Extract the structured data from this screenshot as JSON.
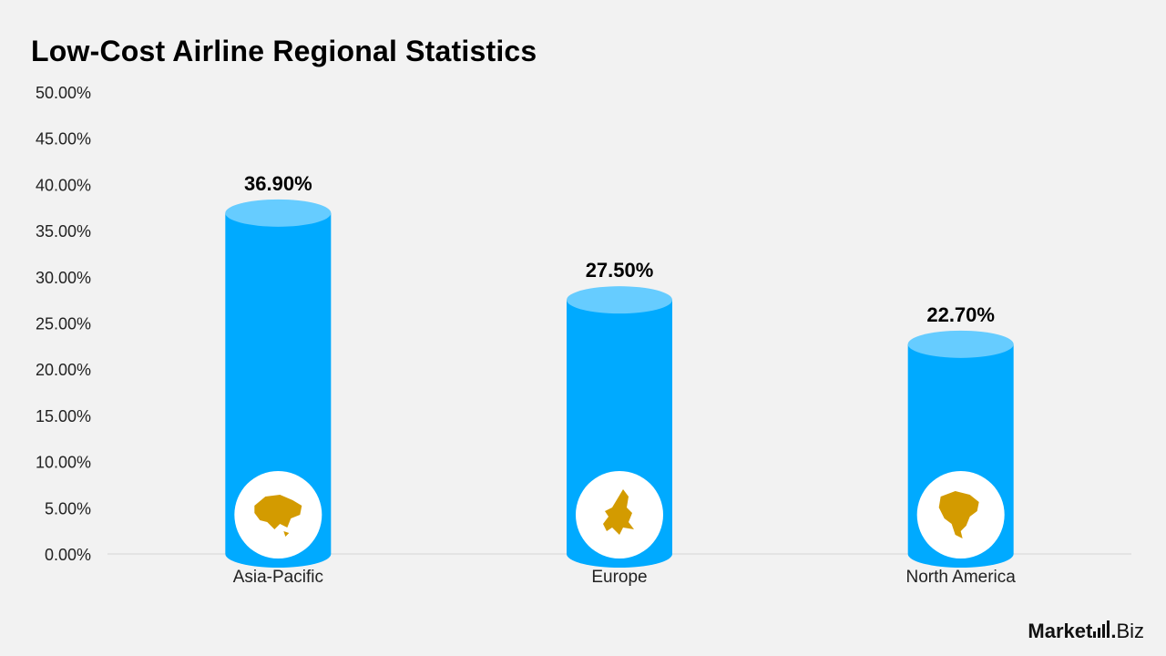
{
  "title": "Low-Cost Airline Regional Statistics",
  "brand": {
    "main": "Market",
    "dot": ".",
    "sub": "Biz"
  },
  "colors": {
    "bar": "#00aaff",
    "bar_top": "#66ccff",
    "icon_fill": "#d39b00",
    "background": "#f2f2f2"
  },
  "chart_data": {
    "type": "bar",
    "categories": [
      "Asia-Pacific",
      "Europe",
      "North America"
    ],
    "values": [
      36.9,
      27.5,
      22.7
    ],
    "value_labels": [
      "36.90%",
      "27.50%",
      "22.70%"
    ],
    "icons": [
      "asia-map-icon",
      "europe-map-icon",
      "north-america-map-icon"
    ],
    "ylim": [
      0,
      50
    ],
    "yticks": [
      "0.00%",
      "5.00%",
      "10.00%",
      "15.00%",
      "20.00%",
      "25.00%",
      "30.00%",
      "35.00%",
      "40.00%",
      "45.00%",
      "50.00%"
    ],
    "grid": false,
    "xlabel": "",
    "ylabel": ""
  }
}
